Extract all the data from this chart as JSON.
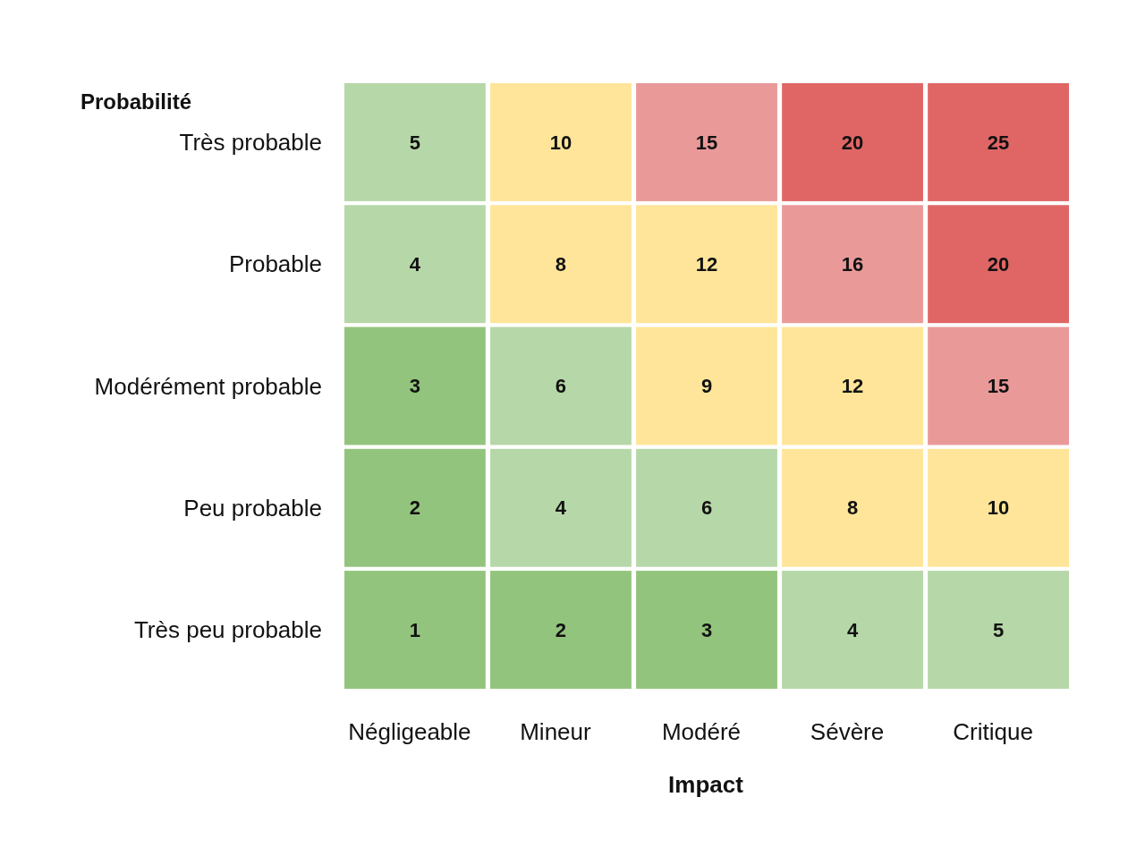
{
  "chart_data": {
    "type": "heatmap",
    "data_labels": true,
    "xlabel": "Impact",
    "ylabel": "Probabilité",
    "categories": [
      "Négligeable",
      "Mineur",
      "Modéré",
      "Sévère",
      "Critique"
    ],
    "y_categories": [
      "Très probable",
      "Probable",
      "Modérément probable",
      "Peu probable",
      "Très peu probable"
    ],
    "cells": [
      [
        5,
        10,
        15,
        20,
        25
      ],
      [
        4,
        8,
        12,
        16,
        20
      ],
      [
        3,
        6,
        9,
        12,
        15
      ],
      [
        2,
        4,
        6,
        8,
        10
      ],
      [
        1,
        2,
        3,
        4,
        5
      ]
    ],
    "colors": [
      [
        "#b6d7a8",
        "#ffe599",
        "#ea9999",
        "#e06666",
        "#e06666"
      ],
      [
        "#b6d7a8",
        "#ffe599",
        "#ffe599",
        "#ea9999",
        "#e06666"
      ],
      [
        "#93c47d",
        "#b6d7a8",
        "#ffe599",
        "#ffe599",
        "#ea9999"
      ],
      [
        "#93c47d",
        "#b6d7a8",
        "#b6d7a8",
        "#ffe599",
        "#ffe599"
      ],
      [
        "#93c47d",
        "#93c47d",
        "#93c47d",
        "#b6d7a8",
        "#b6d7a8"
      ]
    ]
  }
}
